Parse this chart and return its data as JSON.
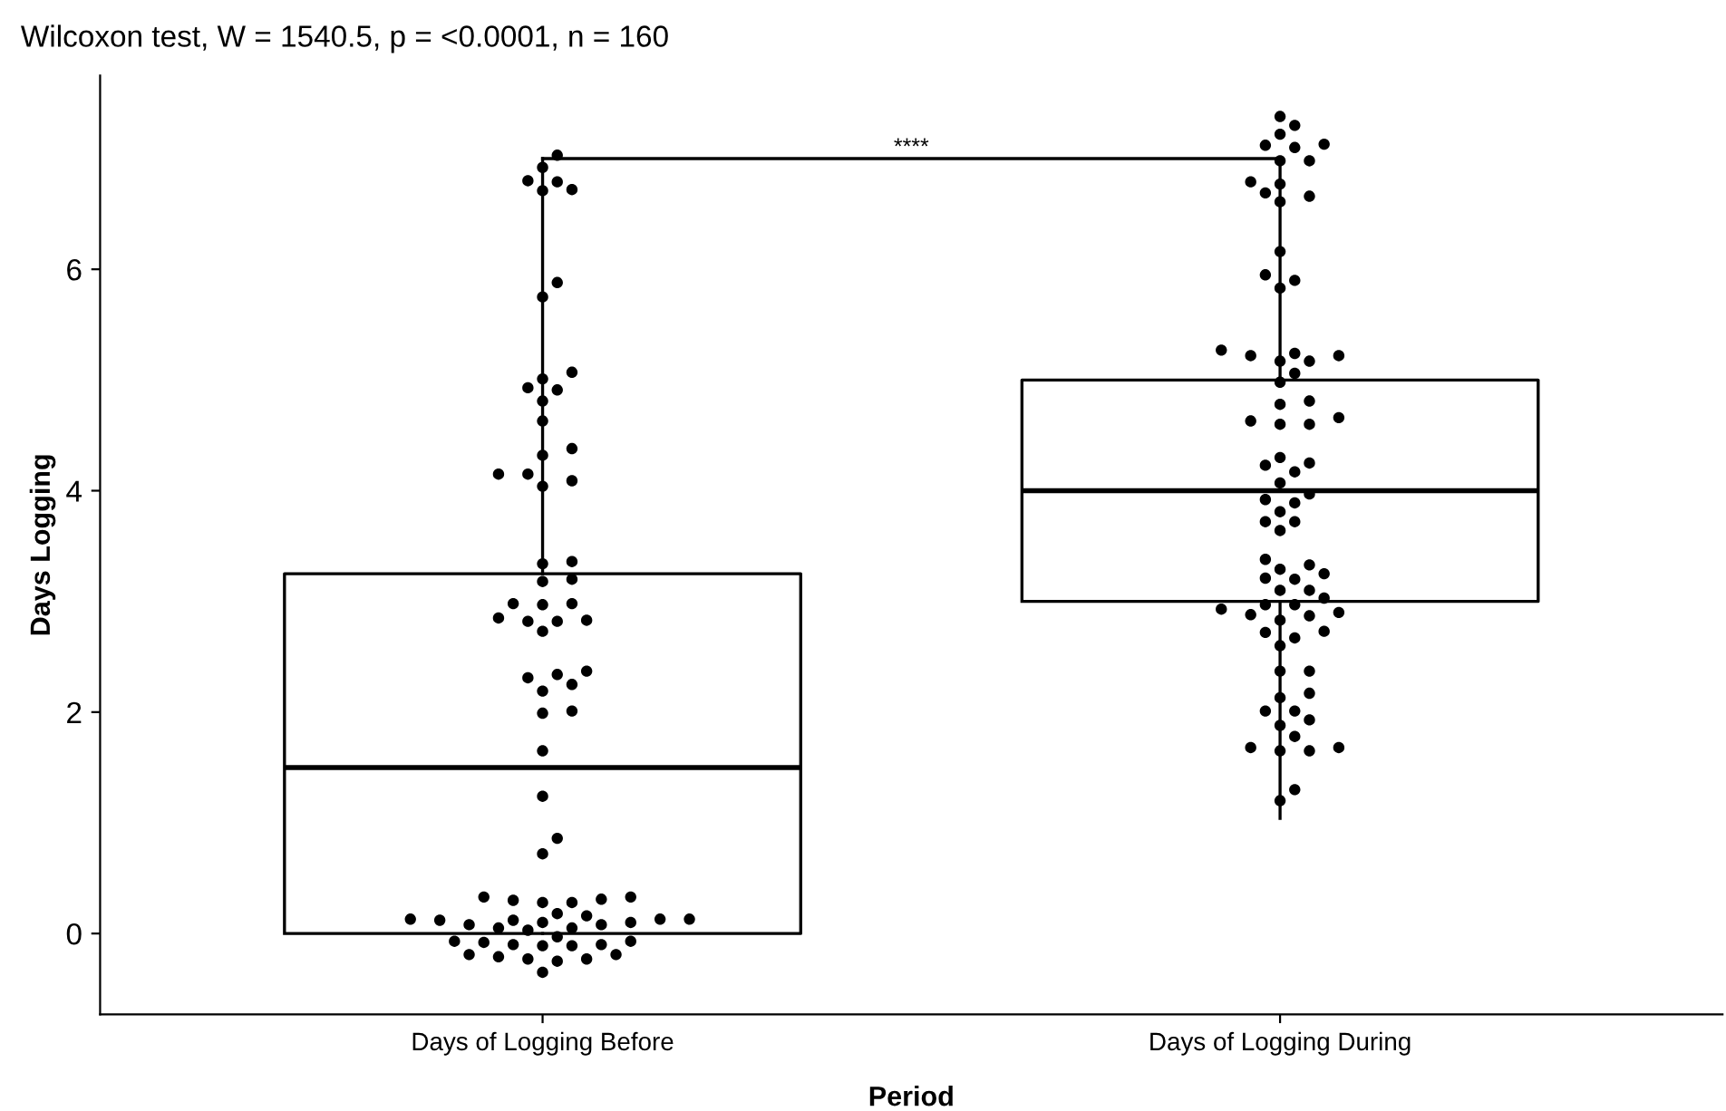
{
  "chart_data": {
    "type": "box",
    "title": "Wilcoxon test, W = 1540.5, p = <0.0001, n = 160",
    "xlabel": "Period",
    "ylabel": "Days Logging",
    "categories": [
      "Days of Logging Before",
      "Days of Logging During"
    ],
    "boxes": [
      {
        "low": 0,
        "q1": 0,
        "median": 1.5,
        "q3": 3.25,
        "high": 7.0
      },
      {
        "low": 1.04,
        "q1": 3.0,
        "median": 4.0,
        "q3": 5.0,
        "high": 7.0
      }
    ],
    "series": [
      {
        "type": "scatter",
        "color": "#000000",
        "x": [
          "Days of Logging Before",
          "Days of Logging Before",
          "Days of Logging Before",
          "Days of Logging Before",
          "Days of Logging Before",
          "Days of Logging Before",
          "Days of Logging Before",
          "Days of Logging Before",
          "Days of Logging Before",
          "Days of Logging Before",
          "Days of Logging Before",
          "Days of Logging Before",
          "Days of Logging Before",
          "Days of Logging Before",
          "Days of Logging Before",
          "Days of Logging Before",
          "Days of Logging Before",
          "Days of Logging Before",
          "Days of Logging Before",
          "Days of Logging Before",
          "Days of Logging Before",
          "Days of Logging Before",
          "Days of Logging Before",
          "Days of Logging Before",
          "Days of Logging Before",
          "Days of Logging Before",
          "Days of Logging Before",
          "Days of Logging Before",
          "Days of Logging Before",
          "Days of Logging Before",
          "Days of Logging Before",
          "Days of Logging Before",
          "Days of Logging Before",
          "Days of Logging Before",
          "Days of Logging Before",
          "Days of Logging Before",
          "Days of Logging Before",
          "Days of Logging Before",
          "Days of Logging Before",
          "Days of Logging Before",
          "Days of Logging Before",
          "Days of Logging Before",
          "Days of Logging Before",
          "Days of Logging Before",
          "Days of Logging Before",
          "Days of Logging Before",
          "Days of Logging Before",
          "Days of Logging Before",
          "Days of Logging Before",
          "Days of Logging Before",
          "Days of Logging Before",
          "Days of Logging Before",
          "Days of Logging Before",
          "Days of Logging Before",
          "Days of Logging Before",
          "Days of Logging Before",
          "Days of Logging Before",
          "Days of Logging Before",
          "Days of Logging Before",
          "Days of Logging Before",
          "Days of Logging Before",
          "Days of Logging Before",
          "Days of Logging Before",
          "Days of Logging Before",
          "Days of Logging Before",
          "Days of Logging Before",
          "Days of Logging Before",
          "Days of Logging Before",
          "Days of Logging Before",
          "Days of Logging Before",
          "Days of Logging Before",
          "Days of Logging Before",
          "Days of Logging Before",
          "Days of Logging Before",
          "Days of Logging Before",
          "Days of Logging Before",
          "Days of Logging Before",
          "Days of Logging Before"
        ],
        "values": [
          7.03,
          6.71,
          6.79,
          6.92,
          6.8,
          6.72,
          5.88,
          5.75,
          5.07,
          5.01,
          4.91,
          4.81,
          4.93,
          4.63,
          4.32,
          4.15,
          4.38,
          4.15,
          4.09,
          4.04,
          3.36,
          3.34,
          3.18,
          3.2,
          2.98,
          2.97,
          2.98,
          2.83,
          2.82,
          2.85,
          2.82,
          2.73,
          2.34,
          2.31,
          2.37,
          2.19,
          2.25,
          2.01,
          1.99,
          1.65,
          1.24,
          0.72,
          0.86,
          0.33,
          0.31,
          0.33,
          0.28,
          0.3,
          0.28,
          0.13,
          0.13,
          0.16,
          0.13,
          0.12,
          0.18,
          0.08,
          0.05,
          0.05,
          0.1,
          0.1,
          0.12,
          0.08,
          0.03,
          -0.11,
          -0.08,
          -0.07,
          -0.1,
          -0.21,
          -0.23,
          -0.25,
          -0.19,
          -0.35,
          -0.07,
          -0.11,
          -0.03,
          -0.23,
          -0.1,
          -0.19
        ]
      },
      {
        "type": "scatter",
        "color": "#000000",
        "x": [
          "Days of Logging During",
          "Days of Logging During",
          "Days of Logging During",
          "Days of Logging During",
          "Days of Logging During",
          "Days of Logging During",
          "Days of Logging During",
          "Days of Logging During",
          "Days of Logging During",
          "Days of Logging During",
          "Days of Logging During",
          "Days of Logging During",
          "Days of Logging During",
          "Days of Logging During",
          "Days of Logging During",
          "Days of Logging During",
          "Days of Logging During",
          "Days of Logging During",
          "Days of Logging During",
          "Days of Logging During",
          "Days of Logging During",
          "Days of Logging During",
          "Days of Logging During",
          "Days of Logging During",
          "Days of Logging During",
          "Days of Logging During",
          "Days of Logging During",
          "Days of Logging During",
          "Days of Logging During",
          "Days of Logging During",
          "Days of Logging During",
          "Days of Logging During",
          "Days of Logging During",
          "Days of Logging During",
          "Days of Logging During",
          "Days of Logging During",
          "Days of Logging During",
          "Days of Logging During",
          "Days of Logging During",
          "Days of Logging During",
          "Days of Logging During",
          "Days of Logging During",
          "Days of Logging During",
          "Days of Logging During",
          "Days of Logging During",
          "Days of Logging During",
          "Days of Logging During",
          "Days of Logging During",
          "Days of Logging During",
          "Days of Logging During",
          "Days of Logging During",
          "Days of Logging During",
          "Days of Logging During",
          "Days of Logging During",
          "Days of Logging During",
          "Days of Logging During",
          "Days of Logging During",
          "Days of Logging During",
          "Days of Logging During",
          "Days of Logging During",
          "Days of Logging During",
          "Days of Logging During",
          "Days of Logging During",
          "Days of Logging During",
          "Days of Logging During",
          "Days of Logging During",
          "Days of Logging During",
          "Days of Logging During",
          "Days of Logging During",
          "Days of Logging During",
          "Days of Logging During",
          "Days of Logging During",
          "Days of Logging During",
          "Days of Logging During",
          "Days of Logging During",
          "Days of Logging During",
          "Days of Logging During",
          "Days of Logging During"
        ],
        "values": [
          7.38,
          7.3,
          7.22,
          7.1,
          7.13,
          7.12,
          6.98,
          6.98,
          6.79,
          6.69,
          6.61,
          6.66,
          6.77,
          6.16,
          5.95,
          5.83,
          5.9,
          5.22,
          5.17,
          5.17,
          5.27,
          5.24,
          5.22,
          5.06,
          4.98,
          4.78,
          4.81,
          4.66,
          4.6,
          4.63,
          4.6,
          4.3,
          4.23,
          4.17,
          4.25,
          4.07,
          3.97,
          3.89,
          3.81,
          3.64,
          3.72,
          3.72,
          3.92,
          3.38,
          3.21,
          3.29,
          3.2,
          3.25,
          3.33,
          3.1,
          3.1,
          3.03,
          2.93,
          2.88,
          2.97,
          2.83,
          2.97,
          2.87,
          2.9,
          2.72,
          2.6,
          2.73,
          2.67,
          2.37,
          2.37,
          2.17,
          2.13,
          2.01,
          1.93,
          2.01,
          1.88,
          1.78,
          1.65,
          1.65,
          1.68,
          1.68,
          1.3,
          1.2
        ]
      }
    ],
    "ylim": [
      -0.73,
      7.75
    ],
    "yticks": [
      0,
      2,
      4,
      6
    ],
    "grid": false,
    "legend": false,
    "marker": "circle",
    "annotations": [
      "****"
    ]
  }
}
